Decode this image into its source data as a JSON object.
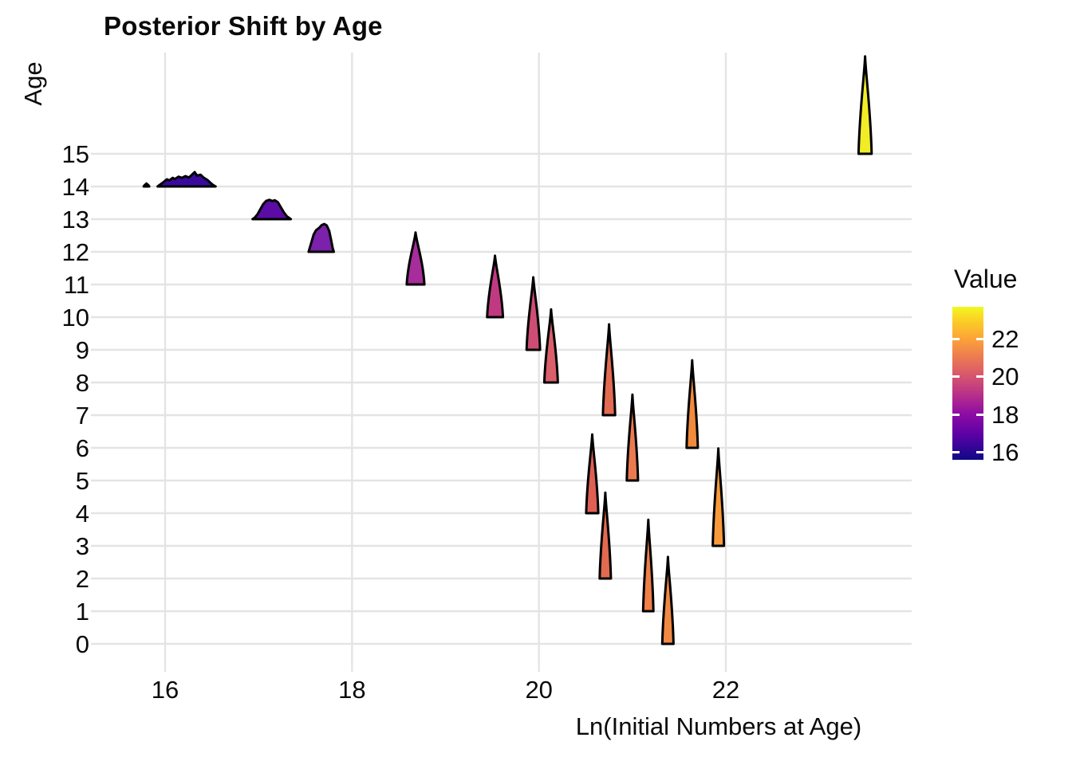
{
  "chart": {
    "title": "Posterior Shift by Age",
    "x_title": "Ln(Initial Numbers at Age)",
    "y_title": "Age"
  },
  "legend": {
    "title": "Value",
    "ticks": [
      22,
      20,
      18,
      16
    ],
    "domain_min": 15.62,
    "domain_max": 23.68,
    "gradient": [
      [
        "#F0F921",
        0
      ],
      [
        "#FBD224",
        8
      ],
      [
        "#FBA338",
        21
      ],
      [
        "#EC7A52",
        33
      ],
      [
        "#D5536F",
        46
      ],
      [
        "#B62F8B",
        58
      ],
      [
        "#8E0CA4",
        70
      ],
      [
        "#5E02A5",
        83
      ],
      [
        "#260691",
        95
      ],
      [
        "#0D0887",
        100
      ]
    ]
  },
  "chart_data": {
    "type": "ridgeline",
    "title": "Posterior Shift by Age",
    "xlabel": "Ln(Initial Numbers at Age)",
    "ylabel": "Age",
    "color_label": "Value",
    "colormap": "plasma",
    "x_ticks": [
      16,
      18,
      20,
      22
    ],
    "y_ticks": [
      0,
      1,
      2,
      3,
      4,
      5,
      6,
      7,
      8,
      9,
      10,
      11,
      12,
      13,
      14,
      15
    ],
    "x_range": [
      15.3,
      24.0
    ],
    "grid_color": "#E4E4E4",
    "outline_color": "#000000",
    "ridges": [
      {
        "age": 15,
        "x": 23.49,
        "value": 23.5,
        "width": 0.14,
        "height": 2.98,
        "color": "#F2EC27"
      },
      {
        "age": 14,
        "x": 16.23,
        "value": 16.2,
        "width": 0.62,
        "height": 0.44,
        "color": "#3A0A9E",
        "points": [
          [
            0,
            0
          ],
          [
            0.04,
            0.12
          ],
          [
            0.1,
            0.3
          ],
          [
            0.16,
            0.5
          ],
          [
            0.2,
            0.42
          ],
          [
            0.26,
            0.6
          ],
          [
            0.3,
            0.52
          ],
          [
            0.36,
            0.68
          ],
          [
            0.42,
            0.6
          ],
          [
            0.48,
            0.72
          ],
          [
            0.54,
            0.62
          ],
          [
            0.6,
            0.85
          ],
          [
            0.64,
            1.0
          ],
          [
            0.68,
            0.75
          ],
          [
            0.74,
            0.82
          ],
          [
            0.8,
            0.6
          ],
          [
            0.86,
            0.45
          ],
          [
            0.9,
            0.3
          ],
          [
            0.95,
            0.12
          ],
          [
            1,
            0
          ]
        ]
      },
      {
        "age": 14,
        "x": 15.8,
        "value": 16.2,
        "width": 0.06,
        "height": 0.09,
        "color": "#3A0A9E",
        "note": "outlier-dot"
      },
      {
        "age": 13,
        "x": 17.14,
        "value": 17.1,
        "width": 0.41,
        "height": 0.59,
        "color": "#5B0CA4",
        "points": [
          [
            0,
            0
          ],
          [
            0.06,
            0.08
          ],
          [
            0.13,
            0.25
          ],
          [
            0.2,
            0.5
          ],
          [
            0.28,
            0.78
          ],
          [
            0.36,
            0.95
          ],
          [
            0.44,
            1.0
          ],
          [
            0.52,
            0.94
          ],
          [
            0.58,
            0.98
          ],
          [
            0.66,
            0.88
          ],
          [
            0.74,
            0.62
          ],
          [
            0.82,
            0.35
          ],
          [
            0.9,
            0.14
          ],
          [
            1,
            0
          ]
        ]
      },
      {
        "age": 12,
        "x": 17.67,
        "value": 17.7,
        "width": 0.27,
        "height": 0.85,
        "color": "#7C21AB",
        "points": [
          [
            0,
            0
          ],
          [
            0.1,
            0.3
          ],
          [
            0.2,
            0.62
          ],
          [
            0.3,
            0.78
          ],
          [
            0.42,
            0.86
          ],
          [
            0.52,
            0.96
          ],
          [
            0.62,
            1.0
          ],
          [
            0.72,
            0.95
          ],
          [
            0.82,
            0.75
          ],
          [
            0.9,
            0.4
          ],
          [
            0.96,
            0.12
          ],
          [
            1,
            0
          ]
        ]
      },
      {
        "age": 11,
        "x": 18.68,
        "value": 18.7,
        "width": 0.19,
        "height": 1.59,
        "color": "#A62D9B"
      },
      {
        "age": 10,
        "x": 19.53,
        "value": 19.5,
        "width": 0.17,
        "height": 1.88,
        "color": "#C03A82"
      },
      {
        "age": 9,
        "x": 19.94,
        "value": 19.9,
        "width": 0.145,
        "height": 2.22,
        "color": "#CE4D74"
      },
      {
        "age": 8,
        "x": 20.13,
        "value": 20.1,
        "width": 0.145,
        "height": 2.24,
        "color": "#D95F6B"
      },
      {
        "age": 7,
        "x": 20.75,
        "value": 20.8,
        "width": 0.13,
        "height": 2.78,
        "color": "#E26B52"
      },
      {
        "age": 6,
        "x": 21.64,
        "value": 21.6,
        "width": 0.12,
        "height": 2.68,
        "color": "#F08A3C"
      },
      {
        "age": 5,
        "x": 21.0,
        "value": 21.0,
        "width": 0.12,
        "height": 2.63,
        "color": "#EC7A50"
      },
      {
        "age": 4,
        "x": 20.57,
        "value": 20.6,
        "width": 0.13,
        "height": 2.41,
        "color": "#DF5F55"
      },
      {
        "age": 3,
        "x": 21.92,
        "value": 21.9,
        "width": 0.12,
        "height": 2.98,
        "color": "#F89A3C"
      },
      {
        "age": 2,
        "x": 20.71,
        "value": 20.7,
        "width": 0.12,
        "height": 2.63,
        "color": "#E16A50"
      },
      {
        "age": 1,
        "x": 21.17,
        "value": 21.2,
        "width": 0.11,
        "height": 2.8,
        "color": "#EE8048"
      },
      {
        "age": 0,
        "x": 21.38,
        "value": 21.4,
        "width": 0.12,
        "height": 2.66,
        "color": "#F18943"
      }
    ]
  }
}
